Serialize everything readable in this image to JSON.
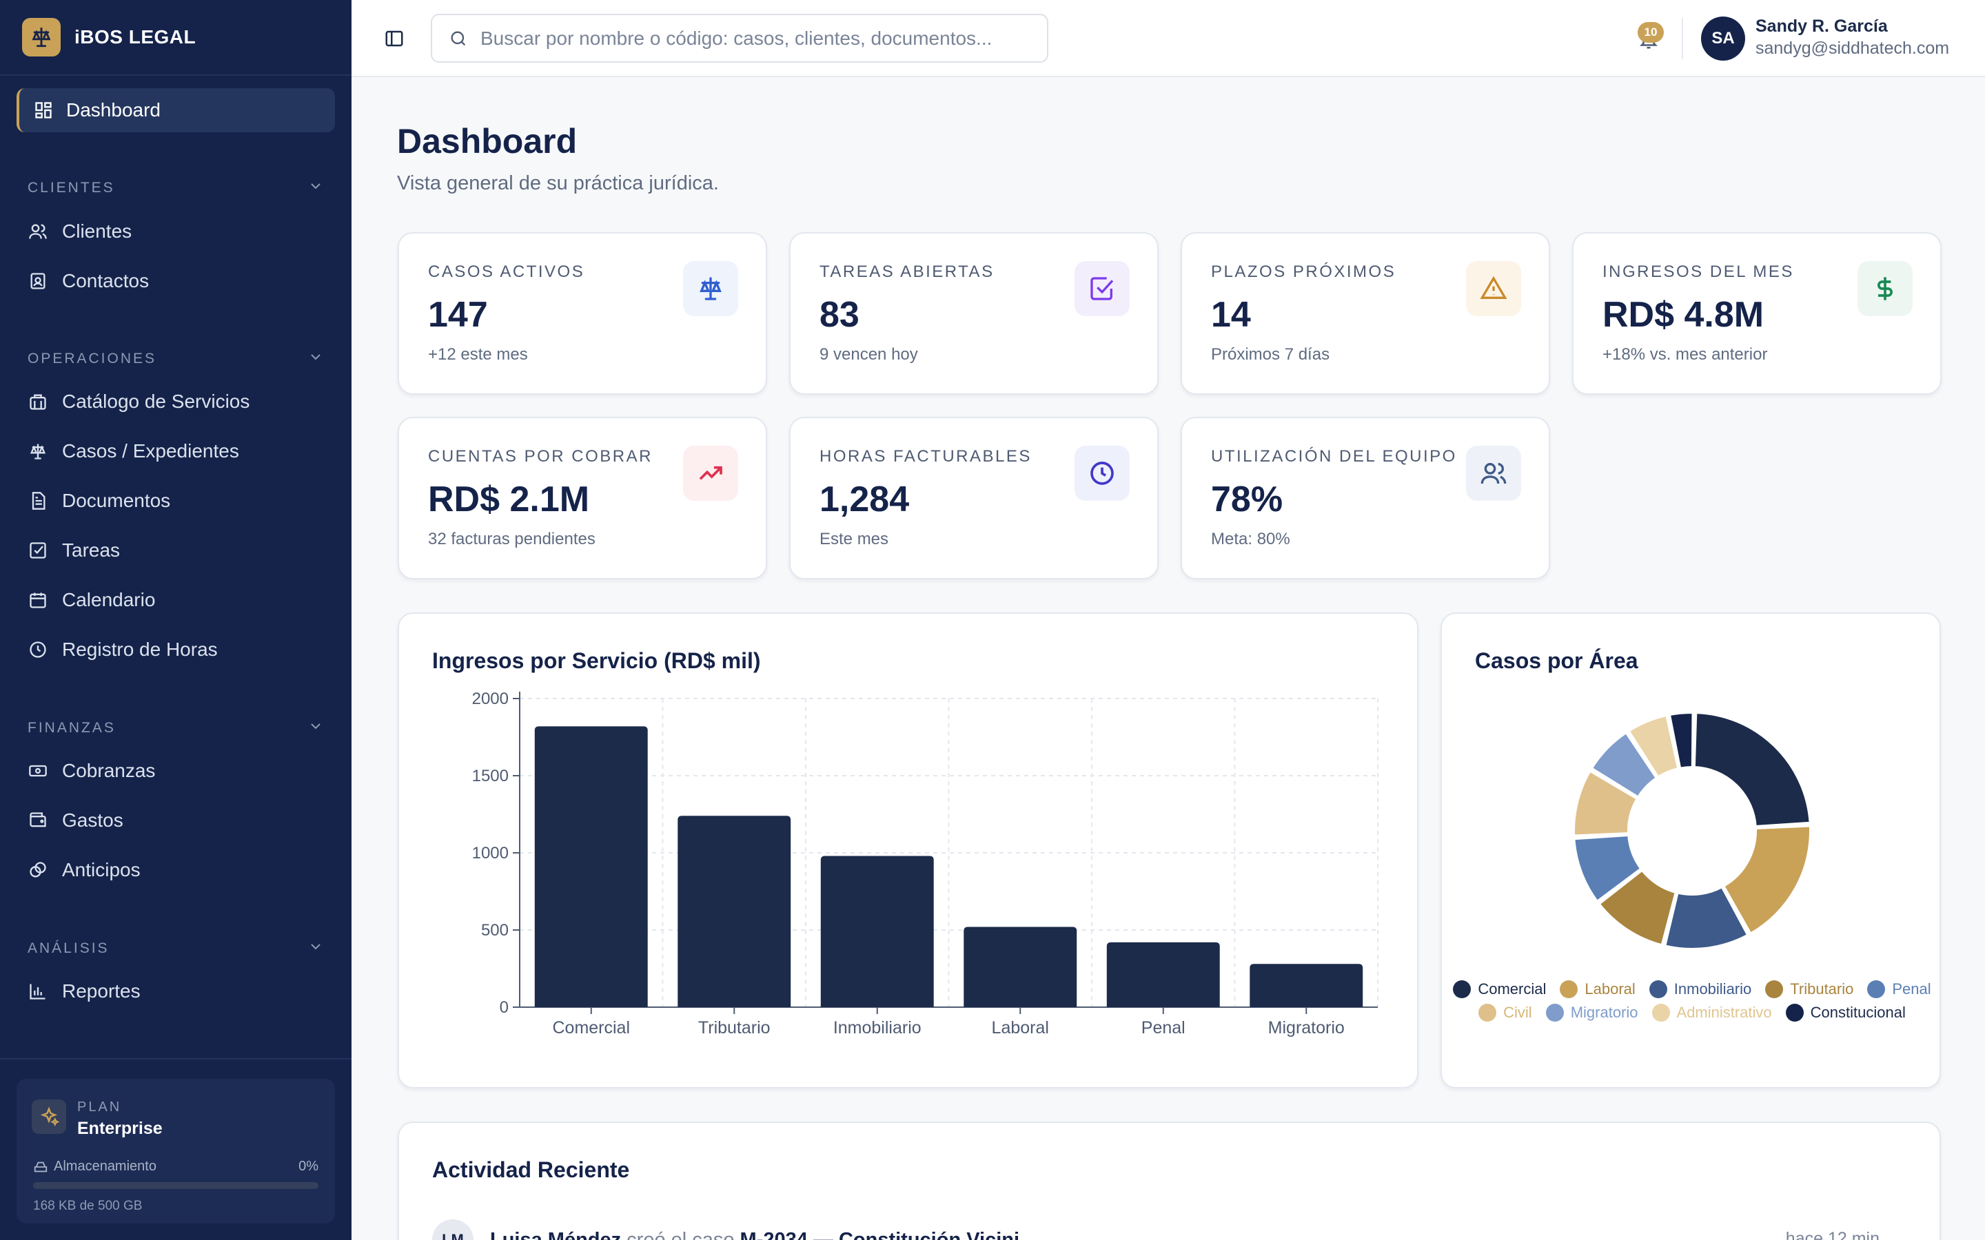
{
  "brand": {
    "name": "iBOS LEGAL"
  },
  "sidebar": {
    "active_item": "Dashboard",
    "sections": {
      "clientes": {
        "title": "CLIENTES",
        "items": [
          "Clientes",
          "Contactos"
        ]
      },
      "operaciones": {
        "title": "OPERACIONES",
        "items": [
          "Catálogo de Servicios",
          "Casos / Expedientes",
          "Documentos",
          "Tareas",
          "Calendario",
          "Registro de Horas"
        ]
      },
      "finanzas": {
        "title": "FINANZAS",
        "items": [
          "Cobranzas",
          "Gastos",
          "Anticipos"
        ]
      },
      "analisis": {
        "title": "ANÁLISIS",
        "items": [
          "Reportes"
        ]
      }
    },
    "plan": {
      "label": "PLAN",
      "name": "Enterprise",
      "storage_label": "Almacenamiento",
      "storage_percent_text": "0%",
      "storage_fraction": 0.0,
      "storage_detail": "168 KB de 500 GB"
    }
  },
  "topbar": {
    "search_placeholder": "Buscar por nombre o código: casos, clientes, documentos...",
    "notifications_count": "10",
    "user": {
      "initials": "SA",
      "name": "Sandy R. García",
      "email": "sandyg@siddhatech.com"
    }
  },
  "page": {
    "title": "Dashboard",
    "subtitle": "Vista general de su práctica jurídica."
  },
  "stats": [
    {
      "label": "CASOS ACTIVOS",
      "value": "147",
      "sub": "+12 este mes",
      "icon": "scale-icon",
      "icon_color": "#2f5fd0",
      "icon_bg": "#eef3fc"
    },
    {
      "label": "TAREAS ABIERTAS",
      "value": "83",
      "sub": "9 vencen hoy",
      "icon": "checkbox-icon",
      "icon_color": "#7c3aed",
      "icon_bg": "#f3eefc"
    },
    {
      "label": "PLAZOS PRÓXIMOS",
      "value": "14",
      "sub": "Próximos 7 días",
      "icon": "warning-icon",
      "icon_color": "#c98a2a",
      "icon_bg": "#fdf4e8"
    },
    {
      "label": "INGRESOS DEL MES",
      "value": "RD$ 4.8M",
      "sub": "+18% vs. mes anterior",
      "icon": "dollar-icon",
      "icon_color": "#1a8a55",
      "icon_bg": "#eef6f2"
    },
    {
      "label": "CUENTAS POR COBRAR",
      "value": "RD$ 2.1M",
      "sub": "32 facturas pendientes",
      "icon": "trending-up-icon",
      "icon_color": "#e0304f",
      "icon_bg": "#fdeef0"
    },
    {
      "label": "HORAS FACTURABLES",
      "value": "1,284",
      "sub": "Este mes",
      "icon": "clock-icon",
      "icon_color": "#4338ca",
      "icon_bg": "#eef1fc"
    },
    {
      "label": "UTILIZACIÓN DEL EQUIPO",
      "value": "78%",
      "sub": "Meta: 80%",
      "icon": "users-icon",
      "icon_color": "#3f5a86",
      "icon_bg": "#eef2f8"
    }
  ],
  "chart_data": [
    {
      "type": "bar",
      "title": "Ingresos por Servicio (RD$ mil)",
      "categories": [
        "Comercial",
        "Tributario",
        "Inmobiliario",
        "Laboral",
        "Penal",
        "Migratorio"
      ],
      "values": [
        1820,
        1240,
        980,
        520,
        420,
        280
      ],
      "ylim": [
        0,
        2000
      ],
      "yticks": [
        "0",
        "500",
        "1000",
        "1500",
        "2000"
      ],
      "grid": true,
      "bar_color": "#1c2b4a"
    },
    {
      "type": "pie",
      "title": "Casos por Área",
      "labels": [
        "Comercial",
        "Laboral",
        "Inmobiliario",
        "Tributario",
        "Penal",
        "Civil",
        "Migratorio",
        "Administrativo",
        "Constitucional"
      ],
      "values": [
        20,
        15,
        10,
        9,
        8,
        8,
        6,
        5,
        3
      ],
      "colors": [
        "#1c2b4a",
        "#c9a258",
        "#3d5a8a",
        "#a8843e",
        "#5a7fb5",
        "#dfc08a",
        "#7f9ccb",
        "#ead3a6",
        "#15234a"
      ],
      "legend_text_colors": [
        "#1c2b4a",
        "#a8843e",
        "#3d5a8a",
        "#a8843e",
        "#5a7fb5",
        "#d6b778",
        "#7f9ccb",
        "#e0c58f",
        "#1c2b4a"
      ],
      "legend": "bottom"
    }
  ],
  "activity": {
    "title": "Actividad Reciente",
    "items": [
      {
        "initials": "LM",
        "user": "Luisa Méndez",
        "action": "creó el caso",
        "target": "M-2034 — Constitución Vicini",
        "time": "hace 12 min"
      }
    ]
  }
}
